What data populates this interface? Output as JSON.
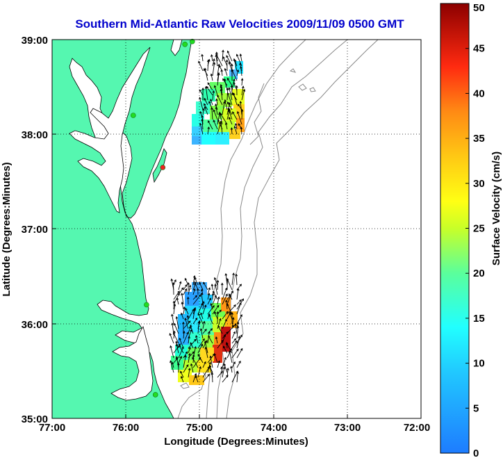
{
  "title": "Southern Mid-Atlantic Raw Velocities 2009/11/09 0500 GMT",
  "xlabel": "Longitude (Degrees:Minutes)",
  "ylabel": "Latitude (Degrees:Minutes)",
  "x_ticks": [
    "77:00",
    "76:00",
    "75:00",
    "74:00",
    "73:00",
    "72:00"
  ],
  "y_ticks": [
    "39:00",
    "38:00",
    "37:00",
    "36:00",
    "35:00"
  ],
  "colorbar": {
    "label": "Surface Velocity (cm/s)",
    "ticks": [
      "0",
      "5",
      "10",
      "15",
      "20",
      "25",
      "30",
      "35",
      "40",
      "45",
      "50"
    ],
    "min": 0,
    "max": 50
  },
  "extent": {
    "lon_min": -77,
    "lon_max": -72,
    "lat_min": 35,
    "lat_max": 39
  },
  "colors": {
    "land": "#55f7b0",
    "title": "#0000cc",
    "coast": "#000000",
    "bathy": "#888888"
  },
  "stations": [
    {
      "lon": -75.1,
      "lat": 38.98,
      "status": "ok"
    },
    {
      "lon": -75.2,
      "lat": 38.95,
      "status": "ok"
    },
    {
      "lon": -75.9,
      "lat": 38.2,
      "status": "ok"
    },
    {
      "lon": -75.5,
      "lat": 37.65,
      "status": "offline"
    },
    {
      "lon": -75.72,
      "lat": 36.2,
      "status": "ok"
    },
    {
      "lon": -75.6,
      "lat": 35.25,
      "status": "ok"
    }
  ]
}
